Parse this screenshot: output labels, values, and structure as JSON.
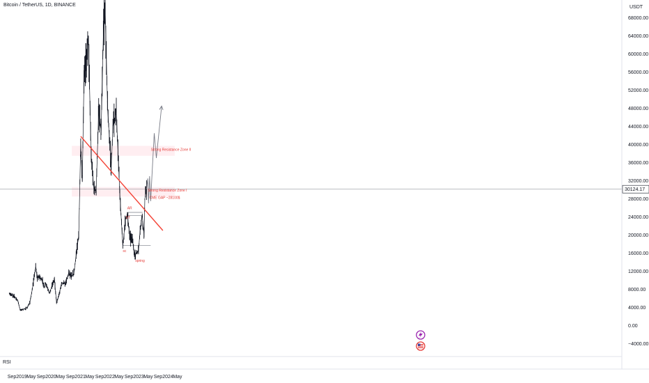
{
  "header": {
    "symbol_line": "Bitcoin / TetherUS, 1D, BINANCE"
  },
  "indicator": {
    "label": "RSI"
  },
  "chart_data": {
    "type": "candlestick",
    "title": "Bitcoin / TetherUS, 1D, BINANCE",
    "y_unit": "USDT",
    "ylim": [
      -6000,
      70000
    ],
    "y_ticks": [
      68000,
      64000,
      60000,
      56000,
      52000,
      48000,
      44000,
      40000,
      36000,
      32000,
      28000,
      24000,
      20000,
      16000,
      12000,
      8000,
      4000,
      0,
      -4000
    ],
    "y_tick_labels": [
      "68000.00",
      "64000.00",
      "60000.00",
      "56000.00",
      "52000.00",
      "48000.00",
      "44000.00",
      "40000.00",
      "36000.00",
      "32000.00",
      "28000.00",
      "24000.00",
      "20000.00",
      "16000.00",
      "12000.00",
      "8000.00",
      "4000.00",
      "0.00",
      "−4000.00"
    ],
    "x_tick_labels": [
      "Sep",
      "2019",
      "May",
      "Sep",
      "2020",
      "May",
      "Sep",
      "2021",
      "May",
      "Sep",
      "2022",
      "May",
      "Sep",
      "2023",
      "May",
      "Sep",
      "2024",
      "May"
    ],
    "x_tick_dates": [
      "2018-09-01",
      "2019-01-01",
      "2019-05-01",
      "2019-09-01",
      "2020-01-01",
      "2020-05-01",
      "2020-09-01",
      "2021-01-01",
      "2021-05-01",
      "2021-09-01",
      "2022-01-01",
      "2022-05-01",
      "2022-09-01",
      "2023-01-01",
      "2023-05-01",
      "2023-09-01",
      "2024-01-01",
      "2024-05-01"
    ],
    "current_price": {
      "value": 30124.17,
      "label": "30124.17"
    },
    "price_path": [
      {
        "date": "2018-08-01",
        "close": 7000
      },
      {
        "date": "2018-10-01",
        "close": 6500
      },
      {
        "date": "2018-11-15",
        "close": 5500
      },
      {
        "date": "2018-12-15",
        "close": 3400
      },
      {
        "date": "2019-01-15",
        "close": 3600
      },
      {
        "date": "2019-02-15",
        "close": 3700
      },
      {
        "date": "2019-03-15",
        "close": 4000
      },
      {
        "date": "2019-04-15",
        "close": 5200
      },
      {
        "date": "2019-05-15",
        "close": 8000
      },
      {
        "date": "2019-06-26",
        "close": 13000
      },
      {
        "date": "2019-07-15",
        "close": 10500
      },
      {
        "date": "2019-08-15",
        "close": 10800
      },
      {
        "date": "2019-09-20",
        "close": 9800
      },
      {
        "date": "2019-10-15",
        "close": 8300
      },
      {
        "date": "2019-10-28",
        "close": 9400
      },
      {
        "date": "2019-12-15",
        "close": 7100
      },
      {
        "date": "2020-01-15",
        "close": 8800
      },
      {
        "date": "2020-02-15",
        "close": 10200
      },
      {
        "date": "2020-03-12",
        "close": 5000
      },
      {
        "date": "2020-04-15",
        "close": 7000
      },
      {
        "date": "2020-05-15",
        "close": 9500
      },
      {
        "date": "2020-07-01",
        "close": 9200
      },
      {
        "date": "2020-08-15",
        "close": 11800
      },
      {
        "date": "2020-09-15",
        "close": 10800
      },
      {
        "date": "2020-10-15",
        "close": 11500
      },
      {
        "date": "2020-11-15",
        "close": 16000
      },
      {
        "date": "2020-12-15",
        "close": 20000
      },
      {
        "date": "2021-01-08",
        "close": 40000
      },
      {
        "date": "2021-01-28",
        "close": 32000
      },
      {
        "date": "2021-02-20",
        "close": 56000
      },
      {
        "date": "2021-03-15",
        "close": 58000
      },
      {
        "date": "2021-04-14",
        "close": 64000
      },
      {
        "date": "2021-05-19",
        "close": 37000
      },
      {
        "date": "2021-06-22",
        "close": 30000
      },
      {
        "date": "2021-07-20",
        "close": 30000
      },
      {
        "date": "2021-08-20",
        "close": 47000
      },
      {
        "date": "2021-09-20",
        "close": 43000
      },
      {
        "date": "2021-10-20",
        "close": 66000
      },
      {
        "date": "2021-11-10",
        "close": 69000
      },
      {
        "date": "2021-12-10",
        "close": 48000
      },
      {
        "date": "2022-01-24",
        "close": 35000
      },
      {
        "date": "2022-02-15",
        "close": 44000
      },
      {
        "date": "2022-03-28",
        "close": 47000
      },
      {
        "date": "2022-05-12",
        "close": 29000
      },
      {
        "date": "2022-06-18",
        "close": 17600
      },
      {
        "date": "2022-07-20",
        "close": 23500
      },
      {
        "date": "2022-08-14",
        "close": 24500
      },
      {
        "date": "2022-09-15",
        "close": 19500
      },
      {
        "date": "2022-10-15",
        "close": 19200
      },
      {
        "date": "2022-11-09",
        "close": 15600
      },
      {
        "date": "2022-12-31",
        "close": 16500
      },
      {
        "date": "2023-01-20",
        "close": 21000
      },
      {
        "date": "2023-02-16",
        "close": 24500
      },
      {
        "date": "2023-03-10",
        "close": 20000
      },
      {
        "date": "2023-03-20",
        "close": 28000
      },
      {
        "date": "2023-04-11",
        "close": 30124
      }
    ],
    "projection_path": [
      {
        "date": "2023-04-11",
        "close": 30124
      },
      {
        "date": "2023-04-25",
        "close": 32500
      },
      {
        "date": "2023-05-05",
        "close": 27000
      },
      {
        "date": "2023-05-18",
        "close": 33000
      },
      {
        "date": "2023-06-01",
        "close": 27500
      },
      {
        "date": "2023-06-15",
        "close": 32500
      },
      {
        "date": "2023-07-15",
        "close": 42500
      },
      {
        "date": "2023-08-10",
        "close": 37000
      },
      {
        "date": "2023-10-15",
        "close": 48500
      }
    ],
    "zones": [
      {
        "label": "Strong Resistance Zone II",
        "y_low": 37500,
        "y_high": 39700,
        "x_start": "2020-12-15",
        "x_end": "2023-12-31"
      },
      {
        "label": "Strong Resistance Zone I",
        "y_low": 28500,
        "y_high": 30600,
        "x_start": "2020-12-15",
        "x_end": "2023-12-31"
      }
    ],
    "trendline": {
      "from": {
        "date": "2021-01-08",
        "price": 41800
      },
      "to": {
        "date": "2023-10-31",
        "price": 21000
      }
    },
    "wyckoff_levels": [
      {
        "from": "2022-06-18",
        "to": "2023-06-01",
        "price": 17700
      },
      {
        "from": "2022-08-10",
        "to": "2023-02-20",
        "price": 25000
      },
      {
        "from": "2022-08-10",
        "to": "2023-02-20",
        "price": 24300
      }
    ],
    "annotations": [
      {
        "text": "Strong Resistance Zone II",
        "date": "2023-06-03",
        "price": 38600
      },
      {
        "text": "Strong Resistance Zone I",
        "date": "2023-04-25",
        "price": 29600
      },
      {
        "text": "CME GAP ~28100$",
        "date": "2023-05-15",
        "price": 28000
      },
      {
        "text": "sc",
        "date": "2022-06-18",
        "price": 16200
      },
      {
        "text": "spring",
        "date": "2022-11-20",
        "price": 14100
      },
      {
        "text": "AR",
        "date": "2022-08-12",
        "price": 25700
      },
      {
        "text": "ST",
        "date": "2022-07-25",
        "price": 23600
      }
    ],
    "grid": false,
    "legend": "top-left"
  }
}
